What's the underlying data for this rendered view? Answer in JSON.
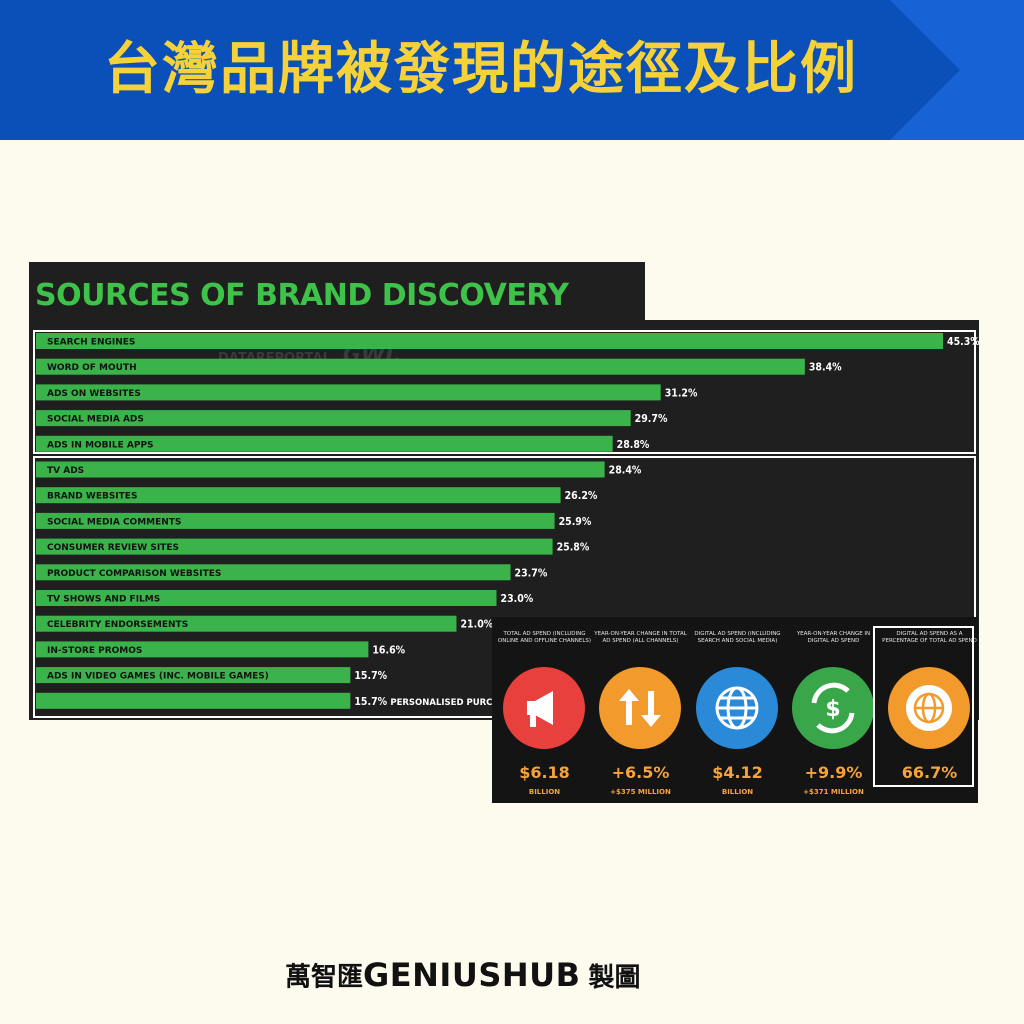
{
  "banner": {
    "title": "台灣品牌被發現的途徑及比例",
    "bg_color": "#0b4fb8",
    "arrow_color": "#1763d6",
    "title_color": "#f6d23a"
  },
  "chart_data": {
    "type": "bar",
    "orientation": "horizontal",
    "title": "SOURCES OF BRAND DISCOVERY",
    "categories": [
      "SEARCH ENGINES",
      "WORD OF MOUTH",
      "ADS ON WEBSITES",
      "SOCIAL MEDIA ADS",
      "ADS IN MOBILE APPS",
      "TV ADS",
      "BRAND WEBSITES",
      "SOCIAL MEDIA COMMENTS",
      "CONSUMER REVIEW SITES",
      "PRODUCT COMPARISON WEBSITES",
      "TV SHOWS AND FILMS",
      "CELEBRITY ENDORSEMENTS",
      "IN-STORE PROMOS",
      "ADS IN VIDEO GAMES (INC. MOBILE GAMES)",
      ""
    ],
    "values": [
      45.3,
      38.4,
      31.2,
      29.7,
      28.8,
      28.4,
      26.2,
      25.9,
      25.8,
      23.7,
      23.0,
      21.0,
      16.6,
      15.7,
      15.7
    ],
    "value_labels": [
      "45.3%",
      "38.4%",
      "31.2%",
      "29.7%",
      "28.8%",
      "28.4%",
      "26.2%",
      "25.9%",
      "25.8%",
      "23.7%",
      "23.0%",
      "21.0%",
      "16.6%",
      "15.7%",
      "15.7%"
    ],
    "partial_label": "PERSONALISED PURC",
    "xlim": [
      0,
      45.3
    ],
    "bar_color": "#3ab44a",
    "background": "#1f1f1f",
    "watermark": {
      "left": "DATAREPORTAL",
      "right": "GWI."
    }
  },
  "ad_spend": {
    "items": [
      {
        "caption": "TOTAL AD SPEND (INCLUDING ONLINE AND OFFLINE CHANNELS)",
        "value": "$6.18",
        "sub": "BILLION",
        "icon": "megaphone-icon",
        "color": "#e8403c"
      },
      {
        "caption": "YEAR-ON-YEAR CHANGE IN TOTAL AD SPEND (ALL CHANNELS)",
        "value": "+6.5%",
        "sub": "+$375 MILLION",
        "icon": "up-down-arrows-icon",
        "color": "#f39a2c"
      },
      {
        "caption": "DIGITAL AD SPEND (INCLUDING SEARCH AND SOCIAL MEDIA)",
        "value": "$4.12",
        "sub": "BILLION",
        "icon": "globe-icon",
        "color": "#2a8ad8"
      },
      {
        "caption": "YEAR-ON-YEAR CHANGE IN DIGITAL AD SPEND",
        "value": "+9.9%",
        "sub": "+$371 MILLION",
        "icon": "dollar-cycle-icon",
        "color": "#3aa64a"
      },
      {
        "caption": "DIGITAL AD SPEND AS A PERCENTAGE OF TOTAL AD SPEND",
        "value": "66.7%",
        "sub": "",
        "icon": "globe-badge-icon",
        "color": "#f39a2c"
      }
    ],
    "value_color": "#f5a33a"
  },
  "footer": {
    "brand_cn": "萬智匯",
    "brand_en": "GENIUSHUB",
    "suffix": "製圖"
  }
}
